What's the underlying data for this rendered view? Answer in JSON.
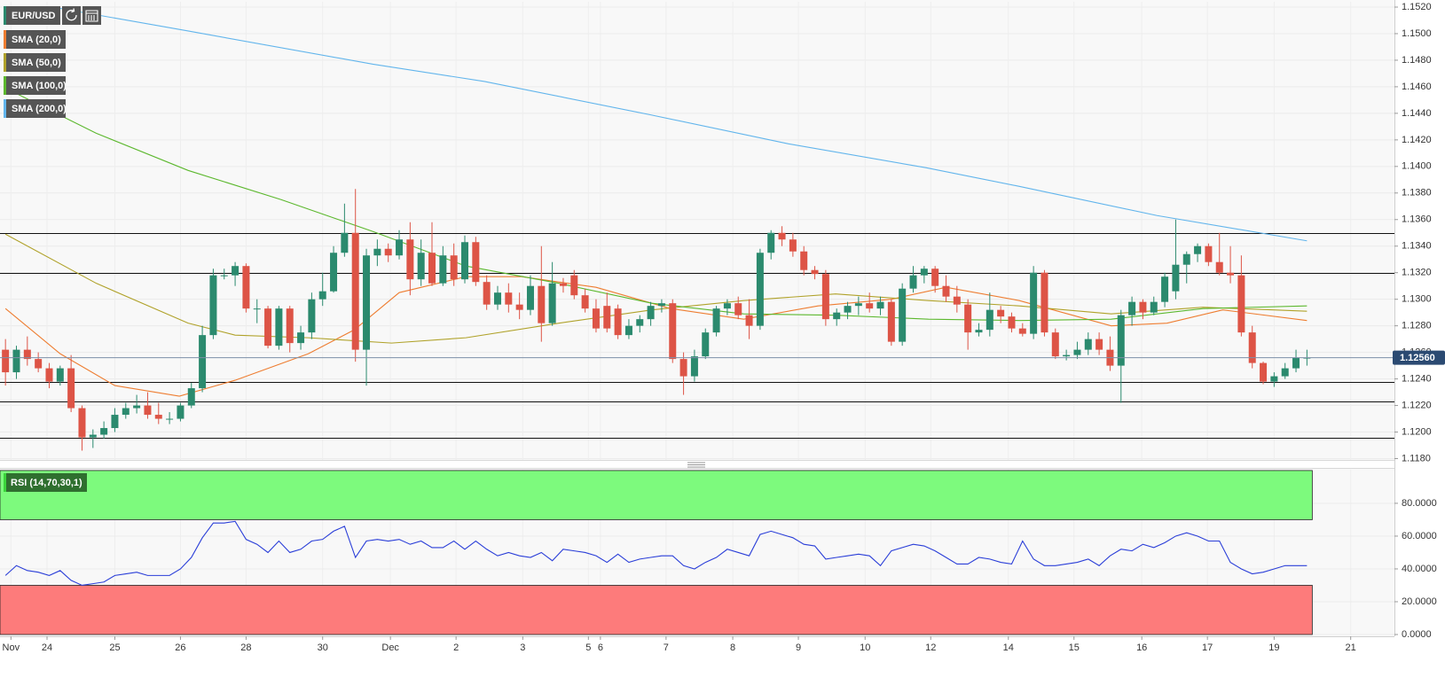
{
  "chart_data": [
    {
      "type": "candlestick",
      "title": "EUR/USD",
      "up_color": "#2b8a6e",
      "down_color": "#dd5446",
      "open": [
        1.1262,
        1.1245,
        1.1262,
        1.1255,
        1.1248,
        1.1238,
        1.1248,
        1.1218,
        1.1196,
        1.1198,
        1.1203,
        1.1213,
        1.1218,
        1.122,
        1.1213,
        1.121,
        1.121,
        1.122,
        1.1233,
        1.1273,
        1.1318,
        1.1318,
        1.1325,
        1.1293,
        1.1293,
        1.1265,
        1.1293,
        1.1267,
        1.1275,
        1.13,
        1.1306,
        1.1335,
        1.135,
        1.1262,
        1.1333,
        1.1338,
        1.1333,
        1.1345,
        1.1315,
        1.1335,
        1.1312,
        1.1333,
        1.1315,
        1.1343,
        1.1313,
        1.1296,
        1.1305,
        1.1296,
        1.1292,
        1.131,
        1.1282,
        1.1312,
        1.1318,
        1.1303,
        1.1293,
        1.1295,
        1.1293,
        1.1273,
        1.128,
        1.1285,
        1.1295,
        1.1297,
        1.1255,
        1.1242,
        1.1257,
        1.1275,
        1.1293,
        1.1297,
        1.1288,
        1.128,
        1.1335,
        1.135,
        1.1345,
        1.1336,
        1.1322,
        1.1319,
        1.1285,
        1.129,
        1.1295,
        1.1297,
        1.1293,
        1.1298,
        1.1268,
        1.1308,
        1.1318,
        1.1323,
        1.131,
        1.1302,
        1.1296,
        1.1275,
        1.1277,
        1.1292,
        1.1287,
        1.1278,
        1.1274,
        1.132,
        1.1275,
        1.1257,
        1.1258,
        1.1262,
        1.127,
        1.1262,
        1.125,
        1.1288,
        1.1298,
        1.129,
        1.1298,
        1.1306,
        1.1326,
        1.1334,
        1.134,
        1.1328,
        1.132,
        1.1318,
        1.1275,
        1.1252,
        1.1238,
        1.1242,
        1.1248,
        1.1256
      ],
      "high": [
        1.127,
        1.1265,
        1.1272,
        1.126,
        1.1252,
        1.125,
        1.1258,
        1.122,
        1.1202,
        1.1208,
        1.1218,
        1.1222,
        1.1228,
        1.123,
        1.1222,
        1.1215,
        1.1222,
        1.1237,
        1.128,
        1.1323,
        1.1323,
        1.1328,
        1.1327,
        1.13,
        1.1295,
        1.1295,
        1.1295,
        1.128,
        1.1305,
        1.132,
        1.134,
        1.1372,
        1.1383,
        1.1338,
        1.1345,
        1.1342,
        1.1352,
        1.1358,
        1.1345,
        1.1358,
        1.134,
        1.1342,
        1.1348,
        1.1347,
        1.1318,
        1.131,
        1.1312,
        1.1305,
        1.1318,
        1.134,
        1.1328,
        1.1316,
        1.1322,
        1.1308,
        1.13,
        1.1305,
        1.1296,
        1.1285,
        1.1288,
        1.1298,
        1.13,
        1.13,
        1.126,
        1.1262,
        1.1278,
        1.1295,
        1.13,
        1.1302,
        1.13,
        1.1338,
        1.1352,
        1.1355,
        1.135,
        1.134,
        1.1325,
        1.1322,
        1.1293,
        1.1298,
        1.1302,
        1.1305,
        1.1302,
        1.13,
        1.1312,
        1.1325,
        1.1325,
        1.1325,
        1.1318,
        1.131,
        1.13,
        1.1282,
        1.1305,
        1.1295,
        1.129,
        1.1282,
        1.1325,
        1.1322,
        1.1278,
        1.1262,
        1.1268,
        1.1275,
        1.1275,
        1.1272,
        1.1292,
        1.1302,
        1.13,
        1.1302,
        1.132,
        1.136,
        1.1336,
        1.1342,
        1.1342,
        1.135,
        1.134,
        1.1333,
        1.128,
        1.1253,
        1.1245,
        1.1252,
        1.1262,
        1.1262
      ],
      "low": [
        1.1235,
        1.124,
        1.125,
        1.1245,
        1.1233,
        1.1235,
        1.1215,
        1.1186,
        1.1188,
        1.1195,
        1.12,
        1.121,
        1.1214,
        1.121,
        1.1206,
        1.1206,
        1.1208,
        1.1218,
        1.123,
        1.127,
        1.1315,
        1.131,
        1.129,
        1.1282,
        1.1263,
        1.1262,
        1.126,
        1.1262,
        1.127,
        1.1295,
        1.1305,
        1.1332,
        1.1253,
        1.1235,
        1.1325,
        1.1328,
        1.133,
        1.1303,
        1.131,
        1.131,
        1.131,
        1.131,
        1.1312,
        1.131,
        1.1292,
        1.1292,
        1.129,
        1.1285,
        1.1288,
        1.1268,
        1.128,
        1.1305,
        1.13,
        1.129,
        1.1275,
        1.1275,
        1.127,
        1.127,
        1.1275,
        1.128,
        1.129,
        1.1252,
        1.1228,
        1.1238,
        1.1255,
        1.1272,
        1.1288,
        1.1285,
        1.127,
        1.1277,
        1.133,
        1.134,
        1.1332,
        1.1318,
        1.1315,
        1.128,
        1.128,
        1.1285,
        1.1288,
        1.129,
        1.1288,
        1.1265,
        1.1265,
        1.1305,
        1.1312,
        1.1305,
        1.1298,
        1.129,
        1.1262,
        1.1272,
        1.1272,
        1.1282,
        1.1275,
        1.1272,
        1.127,
        1.1272,
        1.1255,
        1.1254,
        1.1255,
        1.1258,
        1.1258,
        1.1246,
        1.1222,
        1.128,
        1.1285,
        1.1288,
        1.1294,
        1.13,
        1.1312,
        1.1328,
        1.1325,
        1.1318,
        1.1312,
        1.1272,
        1.1248,
        1.1236,
        1.1234,
        1.124,
        1.1245,
        1.125
      ],
      "close": [
        1.1245,
        1.1262,
        1.1255,
        1.1248,
        1.1238,
        1.1248,
        1.1218,
        1.1196,
        1.1198,
        1.1203,
        1.1213,
        1.1218,
        1.122,
        1.1213,
        1.121,
        1.121,
        1.122,
        1.1233,
        1.1273,
        1.1318,
        1.1318,
        1.1325,
        1.1293,
        1.1293,
        1.1265,
        1.1293,
        1.1267,
        1.1275,
        1.13,
        1.1306,
        1.1335,
        1.135,
        1.1262,
        1.1333,
        1.1338,
        1.1333,
        1.1345,
        1.1315,
        1.1335,
        1.1312,
        1.1333,
        1.1315,
        1.1343,
        1.1313,
        1.1296,
        1.1305,
        1.1296,
        1.1292,
        1.131,
        1.1282,
        1.1312,
        1.131,
        1.1303,
        1.1293,
        1.1278,
        1.1278,
        1.1273,
        1.128,
        1.1285,
        1.1295,
        1.1297,
        1.1255,
        1.1242,
        1.1257,
        1.1275,
        1.1293,
        1.1297,
        1.1288,
        1.128,
        1.1335,
        1.135,
        1.1345,
        1.1336,
        1.1322,
        1.1319,
        1.1285,
        1.129,
        1.1295,
        1.1297,
        1.1293,
        1.1298,
        1.1268,
        1.1308,
        1.1318,
        1.1323,
        1.131,
        1.1302,
        1.1296,
        1.1275,
        1.1277,
        1.1292,
        1.1287,
        1.1278,
        1.1274,
        1.132,
        1.1275,
        1.1257,
        1.1258,
        1.1262,
        1.127,
        1.1262,
        1.125,
        1.1288,
        1.1298,
        1.129,
        1.1298,
        1.1317,
        1.1326,
        1.1334,
        1.134,
        1.1328,
        1.132,
        1.1318,
        1.1275,
        1.1252,
        1.1238,
        1.1242,
        1.1248,
        1.1256,
        1.1256
      ],
      "series": [
        {
          "name": "SMA (20,0)",
          "color": "#ee7d31",
          "x": [
            0,
            5,
            10,
            15.9,
            21,
            27.7,
            31.9,
            36,
            42.1,
            47.2,
            54,
            60.8,
            67.5,
            74.3,
            81,
            86,
            92.7,
            101.1,
            106.2,
            111.3,
            119
          ],
          "values": [
            1.1293,
            1.1259,
            1.1235,
            1.1227,
            1.1239,
            1.1259,
            1.1277,
            1.1305,
            1.1317,
            1.1317,
            1.1309,
            1.1293,
            1.1285,
            1.1295,
            1.13,
            1.1309,
            1.1299,
            1.128,
            1.1282,
            1.1292,
            1.1284
          ]
        },
        {
          "name": "SMA (50,0)",
          "color": "#b0a22a",
          "x": [
            0,
            8.3,
            16.7,
            21,
            27.7,
            35.3,
            42.1,
            50.6,
            59.1,
            67.5,
            75.9,
            84.4,
            92.7,
            101.1,
            109.5,
            119
          ],
          "values": [
            1.1349,
            1.1312,
            1.1282,
            1.1273,
            1.1271,
            1.1267,
            1.1271,
            1.1282,
            1.1292,
            1.1299,
            1.1304,
            1.1299,
            1.1295,
            1.1289,
            1.1294,
            1.1291
          ]
        },
        {
          "name": "SMA (100,0)",
          "color": "#5cb82e",
          "x": [
            0,
            8.3,
            16.7,
            25.2,
            33.6,
            42.1,
            50.6,
            59.1,
            67.5,
            75.9,
            84.4,
            92.7,
            101.1,
            109.5,
            119
          ],
          "values": [
            1.1459,
            1.1425,
            1.1397,
            1.1375,
            1.1351,
            1.1325,
            1.1312,
            1.1297,
            1.1289,
            1.1288,
            1.1285,
            1.1284,
            1.1285,
            1.1293,
            1.1295
          ]
        },
        {
          "name": "SMA (200,0)",
          "color": "#62b5ec",
          "x": [
            5,
            16.7,
            33.6,
            43.8,
            58.9,
            71.6,
            84.2,
            92.7,
            105.3,
            119
          ],
          "values": [
            1.1519,
            1.1502,
            1.1477,
            1.1464,
            1.1439,
            1.1417,
            1.1399,
            1.1385,
            1.1363,
            1.1344
          ]
        }
      ],
      "levels": [
        1.135,
        1.132,
        1.1238,
        1.1223,
        1.1196
      ],
      "level_color": "#111111",
      "last_price": {
        "value": 1.1256,
        "label": "1.12560"
      },
      "last_price_color": "#2b4a72",
      "xlim": [
        -0.5,
        127
      ],
      "xticks": [
        {
          "value": 0.5,
          "label": "Nov"
        },
        {
          "value": 3.8,
          "label": "24"
        },
        {
          "value": 10,
          "label": "25"
        },
        {
          "value": 16,
          "label": "26"
        },
        {
          "value": 22,
          "label": "28"
        },
        {
          "value": 29,
          "label": "30"
        },
        {
          "value": 35.2,
          "label": "Dec"
        },
        {
          "value": 41.2,
          "label": "2"
        },
        {
          "value": 47.3,
          "label": "3"
        },
        {
          "value": 53.3,
          "label": "5"
        },
        {
          "value": 54.4,
          "label": "6"
        },
        {
          "value": 60.4,
          "label": "7"
        },
        {
          "value": 66.5,
          "label": "8"
        },
        {
          "value": 72.5,
          "label": "9"
        },
        {
          "value": 78.6,
          "label": "10"
        },
        {
          "value": 84.6,
          "label": "12"
        },
        {
          "value": 91.7,
          "label": "14"
        },
        {
          "value": 97.7,
          "label": "15"
        },
        {
          "value": 103.9,
          "label": "16"
        },
        {
          "value": 109.9,
          "label": "17"
        },
        {
          "value": 116,
          "label": "19"
        },
        {
          "value": 123,
          "label": "21"
        }
      ],
      "ylim": [
        1.1179,
        1.1524
      ],
      "yticks": [
        {
          "value": 1.118,
          "label": "1.1180"
        },
        {
          "value": 1.12,
          "label": "1.1200"
        },
        {
          "value": 1.122,
          "label": "1.1220"
        },
        {
          "value": 1.124,
          "label": "1.1240"
        },
        {
          "value": 1.126,
          "label": "1.1260"
        },
        {
          "value": 1.128,
          "label": "1.1280"
        },
        {
          "value": 1.13,
          "label": "1.1300"
        },
        {
          "value": 1.132,
          "label": "1.1320"
        },
        {
          "value": 1.134,
          "label": "1.1340"
        },
        {
          "value": 1.136,
          "label": "1.1360"
        },
        {
          "value": 1.138,
          "label": "1.1380"
        },
        {
          "value": 1.14,
          "label": "1.1400"
        },
        {
          "value": 1.142,
          "label": "1.1420"
        },
        {
          "value": 1.144,
          "label": "1.1440"
        },
        {
          "value": 1.146,
          "label": "1.1460"
        },
        {
          "value": 1.148,
          "label": "1.1480"
        },
        {
          "value": 1.15,
          "label": "1.1500"
        },
        {
          "value": 1.152,
          "label": "1.1520"
        }
      ],
      "grid": true
    },
    {
      "type": "line",
      "series": [
        {
          "name": "RSI (14,70,30,1)",
          "color": "#2a3ed8",
          "values": [
            36,
            42,
            39,
            38,
            36,
            39,
            33,
            30,
            31,
            32,
            36,
            37,
            38,
            36,
            36,
            36,
            40,
            47,
            59,
            68,
            68,
            69,
            58,
            55,
            50,
            57,
            50,
            52,
            57,
            58,
            63,
            66,
            47,
            57,
            58,
            57,
            58,
            55,
            57,
            53,
            53,
            57,
            52,
            57,
            52,
            48,
            50,
            48,
            47,
            50,
            45,
            52,
            51,
            50,
            48,
            44,
            49,
            44,
            46,
            47,
            48,
            48,
            42,
            40,
            44,
            47,
            52,
            50,
            48,
            61,
            63,
            61,
            59,
            55,
            54,
            46,
            47,
            48,
            49,
            48,
            42,
            51,
            53,
            55,
            54,
            51,
            47,
            43,
            43,
            47,
            46,
            44,
            43,
            57,
            46,
            42,
            42,
            43,
            44,
            46,
            42,
            48,
            52,
            51,
            55,
            53,
            56,
            60,
            62,
            60,
            57,
            57,
            44,
            40,
            37,
            38,
            40,
            42,
            42,
            42
          ]
        }
      ],
      "zones": [
        {
          "from": 70,
          "to": 100,
          "color": "#7dfa7d"
        },
        {
          "from": 0,
          "to": 30,
          "color": "#fd7b7b"
        }
      ],
      "xlim": [
        -0.5,
        127
      ],
      "ylim": [
        0,
        100.5
      ],
      "yticks": [
        {
          "value": 0,
          "label": "0.0000"
        },
        {
          "value": 20,
          "label": "20.0000"
        },
        {
          "value": 40,
          "label": "40.0000"
        },
        {
          "value": 60,
          "label": "60.0000"
        },
        {
          "value": 80,
          "label": "80.0000"
        }
      ],
      "grid": true
    }
  ]
}
